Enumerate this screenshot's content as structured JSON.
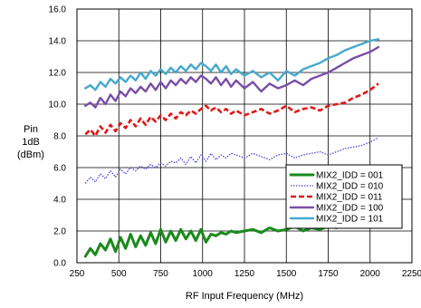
{
  "chart_data": {
    "type": "line",
    "ylabel_lines": [
      "Pin",
      "1dB",
      "(dBm)"
    ],
    "xlabel": "RF Input Frequency (MHz)",
    "xlim": [
      250,
      2250
    ],
    "ylim": [
      0,
      16
    ],
    "x_ticks": [
      250,
      500,
      750,
      1000,
      1250,
      1500,
      1750,
      2000,
      2250
    ],
    "y_ticks": [
      0,
      2,
      4,
      6,
      8,
      10,
      12,
      14,
      16
    ],
    "x_tick_labels": [
      "250",
      "500",
      "750",
      "1000",
      "1250",
      "1500",
      "1750",
      "2000",
      "2250"
    ],
    "y_tick_labels": [
      "0.0",
      "2.0",
      "4.0",
      "6.0",
      "8.0",
      "10.0",
      "12.0",
      "14.0",
      "16.0"
    ],
    "grid": true,
    "legend_position": "right",
    "series": [
      {
        "name": "MIX2_IDD = 001",
        "color": "#1a8a1a",
        "style": "solid-thick",
        "x": [
          300,
          330,
          360,
          390,
          420,
          450,
          480,
          510,
          540,
          570,
          600,
          630,
          660,
          690,
          720,
          750,
          780,
          810,
          840,
          870,
          900,
          930,
          960,
          990,
          1020,
          1050,
          1080,
          1110,
          1140,
          1170,
          1200,
          1250,
          1300,
          1350,
          1400,
          1450,
          1500,
          1550,
          1600,
          1650,
          1700,
          1750,
          1800,
          1850,
          1900,
          1950,
          2000,
          2050
        ],
        "y": [
          0.4,
          0.9,
          0.5,
          1.2,
          0.8,
          1.5,
          0.7,
          1.6,
          0.9,
          1.8,
          1.0,
          1.7,
          1.1,
          1.9,
          1.2,
          2.1,
          1.3,
          2.0,
          1.4,
          2.1,
          1.5,
          2.0,
          1.4,
          2.1,
          1.3,
          1.8,
          1.7,
          1.9,
          1.8,
          2.0,
          1.9,
          2.0,
          2.1,
          1.9,
          2.2,
          2.0,
          2.1,
          2.3,
          2.0,
          2.2,
          2.1,
          2.3,
          2.2,
          2.5,
          2.7,
          2.8,
          3.2,
          3.6
        ]
      },
      {
        "name": "MIX2_IDD = 010",
        "color": "#4a4adc",
        "style": "dotted",
        "x": [
          300,
          330,
          360,
          390,
          420,
          450,
          480,
          510,
          540,
          570,
          600,
          630,
          660,
          690,
          720,
          750,
          780,
          810,
          840,
          870,
          900,
          930,
          960,
          990,
          1020,
          1050,
          1080,
          1110,
          1140,
          1170,
          1200,
          1250,
          1300,
          1350,
          1400,
          1450,
          1500,
          1550,
          1600,
          1650,
          1700,
          1750,
          1800,
          1850,
          1900,
          1950,
          2000,
          2050
        ],
        "y": [
          5.0,
          5.4,
          5.1,
          5.6,
          5.3,
          5.8,
          5.4,
          5.9,
          5.6,
          6.0,
          5.8,
          6.1,
          5.9,
          6.2,
          6.0,
          6.3,
          6.1,
          6.4,
          6.3,
          6.6,
          6.2,
          6.7,
          6.3,
          6.8,
          6.4,
          6.9,
          6.5,
          6.8,
          6.6,
          6.9,
          6.8,
          6.6,
          6.9,
          6.7,
          6.5,
          6.8,
          6.9,
          6.6,
          6.8,
          6.9,
          7.0,
          6.8,
          7.0,
          7.2,
          7.3,
          7.4,
          7.6,
          7.9
        ]
      },
      {
        "name": "MIX2_IDD = 011",
        "color": "#e01818",
        "style": "dashed",
        "x": [
          300,
          330,
          360,
          390,
          420,
          450,
          480,
          510,
          540,
          570,
          600,
          630,
          660,
          690,
          720,
          750,
          780,
          810,
          840,
          870,
          900,
          930,
          960,
          990,
          1020,
          1050,
          1080,
          1110,
          1140,
          1170,
          1200,
          1250,
          1300,
          1350,
          1400,
          1450,
          1500,
          1550,
          1600,
          1650,
          1700,
          1750,
          1800,
          1850,
          1900,
          1950,
          2000,
          2050
        ],
        "y": [
          8.1,
          8.4,
          8.0,
          8.6,
          8.2,
          8.7,
          8.3,
          8.8,
          8.5,
          9.0,
          8.6,
          9.1,
          8.7,
          9.2,
          8.9,
          9.3,
          9.0,
          9.4,
          9.1,
          9.5,
          9.3,
          9.6,
          9.4,
          9.7,
          9.9,
          9.6,
          9.8,
          9.5,
          9.7,
          9.4,
          9.6,
          9.3,
          9.5,
          9.7,
          9.4,
          9.6,
          9.9,
          9.5,
          9.7,
          9.8,
          9.6,
          9.9,
          10.0,
          10.1,
          10.4,
          10.6,
          10.9,
          11.3
        ]
      },
      {
        "name": "MIX2_IDD = 100",
        "color": "#7a4ea8",
        "style": "solid",
        "x": [
          300,
          330,
          360,
          390,
          420,
          450,
          480,
          510,
          540,
          570,
          600,
          630,
          660,
          690,
          720,
          750,
          780,
          810,
          840,
          870,
          900,
          930,
          960,
          990,
          1020,
          1050,
          1080,
          1110,
          1140,
          1170,
          1200,
          1250,
          1300,
          1350,
          1400,
          1450,
          1500,
          1550,
          1600,
          1650,
          1700,
          1750,
          1800,
          1850,
          1900,
          1950,
          2000,
          2050
        ],
        "y": [
          9.9,
          10.1,
          9.8,
          10.4,
          10.0,
          10.6,
          10.2,
          10.8,
          10.5,
          11.0,
          10.7,
          11.1,
          10.8,
          11.3,
          10.9,
          11.4,
          11.0,
          11.5,
          11.2,
          11.6,
          11.3,
          11.7,
          11.4,
          11.8,
          11.6,
          11.3,
          11.7,
          11.2,
          11.6,
          11.1,
          11.5,
          11.0,
          11.4,
          10.8,
          11.3,
          11.0,
          11.2,
          11.5,
          11.2,
          11.6,
          11.8,
          12.0,
          12.3,
          12.6,
          12.9,
          13.1,
          13.3,
          13.6
        ]
      },
      {
        "name": "MIX2_IDD = 101",
        "color": "#44aacc",
        "style": "solid",
        "x": [
          300,
          330,
          360,
          390,
          420,
          450,
          480,
          510,
          540,
          570,
          600,
          630,
          660,
          690,
          720,
          750,
          780,
          810,
          840,
          870,
          900,
          930,
          960,
          990,
          1020,
          1050,
          1080,
          1110,
          1140,
          1170,
          1200,
          1250,
          1300,
          1350,
          1400,
          1450,
          1500,
          1550,
          1600,
          1650,
          1700,
          1750,
          1800,
          1850,
          1900,
          1950,
          2000,
          2050
        ],
        "y": [
          11.0,
          11.2,
          10.9,
          11.4,
          11.1,
          11.6,
          11.3,
          11.7,
          11.4,
          11.8,
          11.5,
          12.0,
          11.6,
          12.1,
          11.8,
          12.2,
          11.9,
          12.3,
          12.0,
          12.4,
          12.1,
          12.5,
          12.2,
          12.6,
          12.4,
          12.1,
          12.5,
          12.0,
          12.4,
          11.9,
          12.2,
          11.8,
          12.1,
          11.7,
          12.0,
          11.5,
          12.1,
          11.8,
          12.2,
          12.4,
          12.6,
          12.9,
          13.1,
          13.4,
          13.6,
          13.8,
          14.0,
          14.1
        ]
      }
    ]
  }
}
